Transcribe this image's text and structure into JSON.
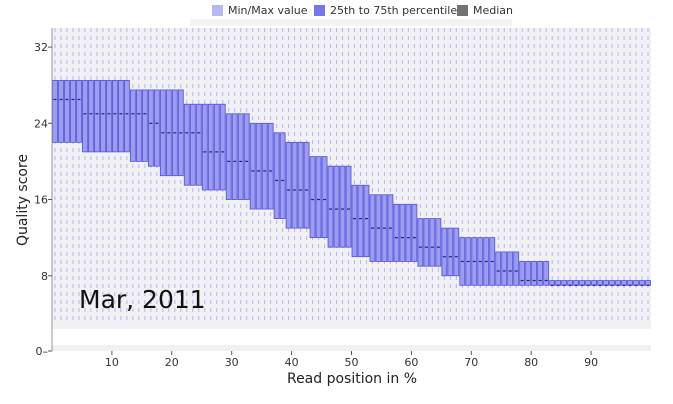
{
  "chart_data": {
    "type": "boxplot",
    "xlabel": "Read position in %",
    "ylabel": "Quality score",
    "annotation": "Mar, 2011",
    "xlim": [
      0,
      100
    ],
    "ylim": [
      0,
      34
    ],
    "x_ticks": [
      10,
      20,
      30,
      40,
      50,
      60,
      70,
      80,
      90
    ],
    "y_ticks": [
      0,
      8,
      16,
      24,
      32
    ],
    "legend": {
      "placement": "top",
      "items": [
        {
          "label": "Min/Max value",
          "color": "#b8b8f0"
        },
        {
          "label": "25th to 75th percentile",
          "color": "#7676e8"
        },
        {
          "label": "Median",
          "color": "#737373"
        }
      ]
    },
    "min_value": 3,
    "max_value": 34,
    "boxes": [
      {
        "x": [
          0,
          5
        ],
        "q1": 22,
        "q3": 28.5,
        "median": 26.5
      },
      {
        "x": [
          5,
          13
        ],
        "q1": 21,
        "q3": 28.5,
        "median": 25
      },
      {
        "x": [
          13,
          16
        ],
        "q1": 20,
        "q3": 27.5,
        "median": 25
      },
      {
        "x": [
          16,
          18
        ],
        "q1": 19.5,
        "q3": 27.5,
        "median": 24
      },
      {
        "x": [
          18,
          22
        ],
        "q1": 18.5,
        "q3": 27.5,
        "median": 23
      },
      {
        "x": [
          22,
          25
        ],
        "q1": 17.5,
        "q3": 26,
        "median": 23
      },
      {
        "x": [
          25,
          29
        ],
        "q1": 17,
        "q3": 26,
        "median": 21
      },
      {
        "x": [
          29,
          33
        ],
        "q1": 16,
        "q3": 25,
        "median": 20
      },
      {
        "x": [
          33,
          37
        ],
        "q1": 15,
        "q3": 24,
        "median": 19
      },
      {
        "x": [
          37,
          39
        ],
        "q1": 14,
        "q3": 23,
        "median": 18
      },
      {
        "x": [
          39,
          43
        ],
        "q1": 13,
        "q3": 22,
        "median": 17
      },
      {
        "x": [
          43,
          46
        ],
        "q1": 12,
        "q3": 20.5,
        "median": 16
      },
      {
        "x": [
          46,
          50
        ],
        "q1": 11,
        "q3": 19.5,
        "median": 15
      },
      {
        "x": [
          50,
          53
        ],
        "q1": 10,
        "q3": 17.5,
        "median": 14
      },
      {
        "x": [
          53,
          57
        ],
        "q1": 9.5,
        "q3": 16.5,
        "median": 13
      },
      {
        "x": [
          57,
          61
        ],
        "q1": 9.5,
        "q3": 15.5,
        "median": 12
      },
      {
        "x": [
          61,
          65
        ],
        "q1": 9,
        "q3": 14,
        "median": 11
      },
      {
        "x": [
          65,
          68
        ],
        "q1": 8,
        "q3": 13,
        "median": 10
      },
      {
        "x": [
          68,
          74
        ],
        "q1": 7,
        "q3": 12,
        "median": 9.5
      },
      {
        "x": [
          74,
          78
        ],
        "q1": 7,
        "q3": 10.5,
        "median": 8.5
      },
      {
        "x": [
          78,
          83
        ],
        "q1": 7,
        "q3": 9.5,
        "median": 7.5
      },
      {
        "x": [
          83,
          89
        ],
        "q1": 7,
        "q3": 7.5,
        "median": 7
      },
      {
        "x": [
          89,
          100
        ],
        "q1": 7,
        "q3": 7.5,
        "median": 7
      }
    ]
  }
}
